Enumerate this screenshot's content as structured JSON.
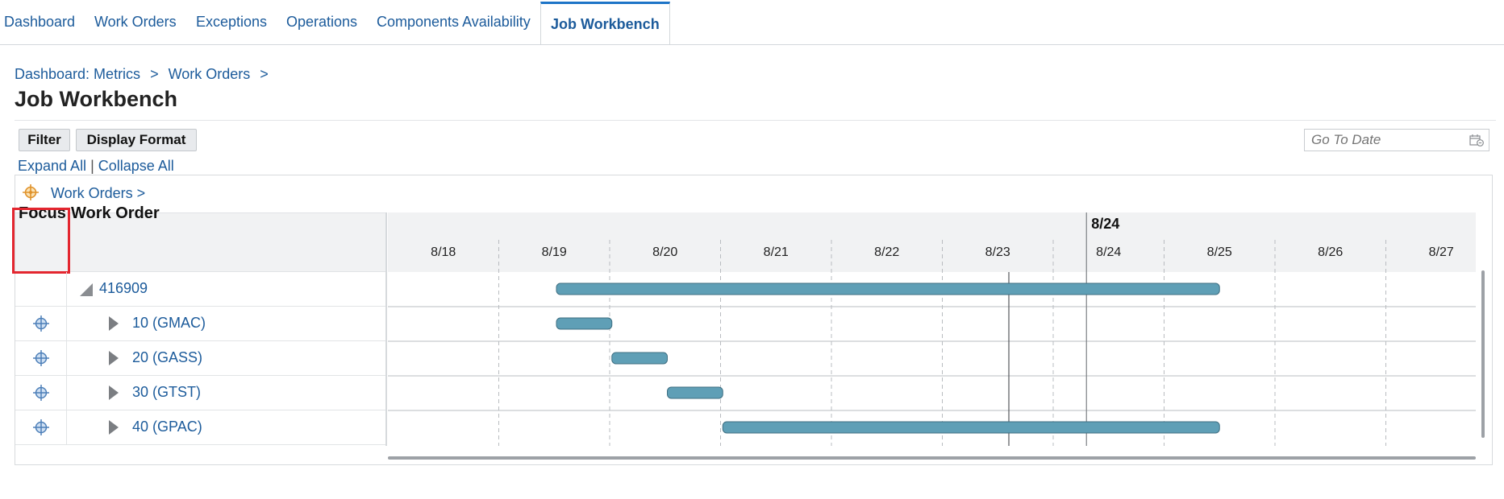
{
  "tabs": [
    {
      "label": "Dashboard",
      "active": false
    },
    {
      "label": "Work Orders",
      "active": false
    },
    {
      "label": "Exceptions",
      "active": false
    },
    {
      "label": "Operations",
      "active": false
    },
    {
      "label": "Components Availability",
      "active": false
    },
    {
      "label": "Job Workbench",
      "active": true
    }
  ],
  "breadcrumb": {
    "items": [
      "Dashboard: Metrics",
      "Work Orders"
    ],
    "separator": ">"
  },
  "page_title": "Job Workbench",
  "toolbar": {
    "filter_label": "Filter",
    "display_format_label": "Display Format",
    "go_to_date_placeholder": "Go To Date"
  },
  "links": {
    "expand_all": "Expand All",
    "separator": "|",
    "collapse_all": "Collapse All"
  },
  "panel": {
    "crumb": "Work Orders  >",
    "columns": {
      "focus": "Focus",
      "work_order": "Work Order"
    },
    "rows": [
      {
        "label": "416909",
        "level": 0,
        "expanded": true,
        "has_focus": false
      },
      {
        "label": "10 (GMAC)",
        "level": 1,
        "expanded": false,
        "has_focus": true
      },
      {
        "label": "20 (GASS)",
        "level": 1,
        "expanded": false,
        "has_focus": true
      },
      {
        "label": "30 (GTST)",
        "level": 1,
        "expanded": false,
        "has_focus": true
      },
      {
        "label": "40 (GPAC)",
        "level": 1,
        "expanded": false,
        "has_focus": true
      }
    ]
  },
  "gantt": {
    "current_marker_label": "8/24",
    "dates": [
      "8/18",
      "8/19",
      "8/20",
      "8/21",
      "8/22",
      "8/23",
      "8/24",
      "8/25",
      "8/26",
      "8/27"
    ],
    "bars": [
      {
        "row": 0,
        "start": 1.52,
        "end": 7.5
      },
      {
        "row": 1,
        "start": 1.52,
        "end": 2.02
      },
      {
        "row": 2,
        "start": 2.02,
        "end": 2.52
      },
      {
        "row": 3,
        "start": 2.52,
        "end": 3.02
      },
      {
        "row": 4,
        "start": 3.02,
        "end": 7.5
      }
    ],
    "now_line": 5.0,
    "today_line": 6.3,
    "colors": {
      "bar_fill": "#5f9fb6",
      "bar_stroke": "#3f6f82",
      "header_bg": "#f1f2f3",
      "grid": "#b9bcc0"
    }
  },
  "icons": {
    "focus": "crosshair-focus-icon",
    "calendar": "calendar-icon",
    "collapse": "triangle-down-icon",
    "expand": "triangle-right-icon"
  }
}
